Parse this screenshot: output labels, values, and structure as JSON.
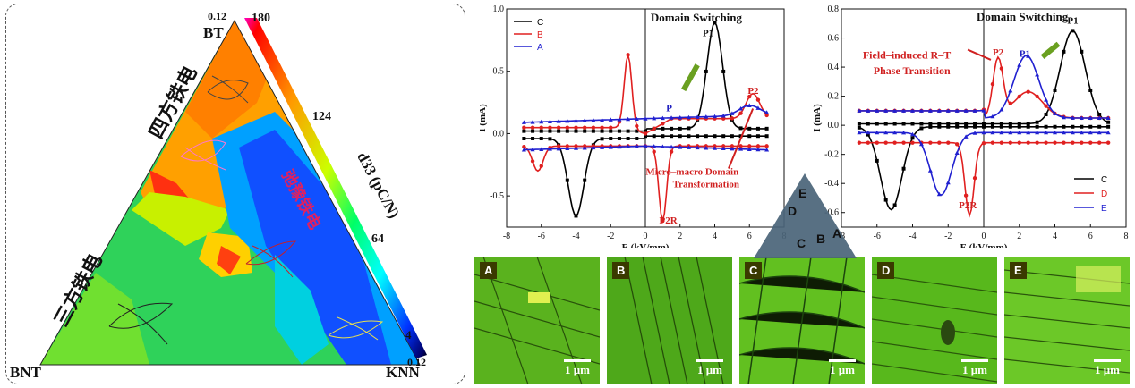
{
  "ternary": {
    "vertex_bt": "BT",
    "vertex_bnt": "BNT",
    "vertex_knn": "KNN",
    "region_tetragonal": "四方铁电",
    "region_rhombohedral": "三方铁电",
    "region_relaxor": "弛豫铁电",
    "colorbar_top_value": "180",
    "colorbar_mid_value": "124",
    "colorbar_low_value": "64",
    "colorbar_bottom_value": "4",
    "axis_min_top": "0.12",
    "axis_min_bottom": "0.12",
    "colorbar_label": "d33 (pC/N)",
    "colorbar_range": [
      4,
      180
    ]
  },
  "chart_data": [
    {
      "type": "line",
      "xlabel": "E (kV/mm)",
      "ylabel": "I (mA)",
      "xlim": [
        -8,
        8
      ],
      "ylim": [
        -0.75,
        1.0
      ],
      "xticks": [
        "-8",
        "-6",
        "-4",
        "-2",
        "0",
        "2",
        "4",
        "6",
        "8"
      ],
      "yticks": [
        "1.0",
        "0.5",
        "0.0",
        "-0.5"
      ],
      "title_annotation": "Domain Switching",
      "annotations": [
        "P1",
        "P2",
        "P",
        "P2R",
        "Micro–macro Domain",
        "Transformation"
      ],
      "series": [
        {
          "name": "C",
          "color": "#000000"
        },
        {
          "name": "B",
          "color": "#e02020"
        },
        {
          "name": "A",
          "color": "#2020d0"
        }
      ],
      "legend_position": "top-left"
    },
    {
      "type": "line",
      "xlabel": "E (kV/mm)",
      "ylabel": "I (mA)",
      "xlim": [
        -8,
        8
      ],
      "ylim": [
        -0.7,
        0.8
      ],
      "xticks": [
        "-8",
        "-6",
        "-4",
        "-2",
        "0",
        "2",
        "4",
        "6",
        "8"
      ],
      "yticks": [
        "0.8",
        "0.6",
        "0.4",
        "0.2",
        "0.0",
        "-0.2",
        "-0.4",
        "-0.6"
      ],
      "title_annotation": "Domain Switching",
      "annotations": [
        "P1",
        "P2",
        "P1",
        "P2R",
        "Field–induced R–T",
        "Phase Transition"
      ],
      "series": [
        {
          "name": "C",
          "color": "#000000"
        },
        {
          "name": "D",
          "color": "#e02020"
        },
        {
          "name": "E",
          "color": "#2020d0"
        }
      ],
      "legend_position": "bottom-right"
    }
  ],
  "micrographs": [
    {
      "tag": "A",
      "scale": "1 μm"
    },
    {
      "tag": "B",
      "scale": "1 μm"
    },
    {
      "tag": "C",
      "scale": "1 μm"
    },
    {
      "tag": "D",
      "scale": "1 μm"
    },
    {
      "tag": "E",
      "scale": "1 μm"
    }
  ],
  "mini_triangle": {
    "labels": [
      "E",
      "D",
      "C",
      "B",
      "A"
    ]
  }
}
